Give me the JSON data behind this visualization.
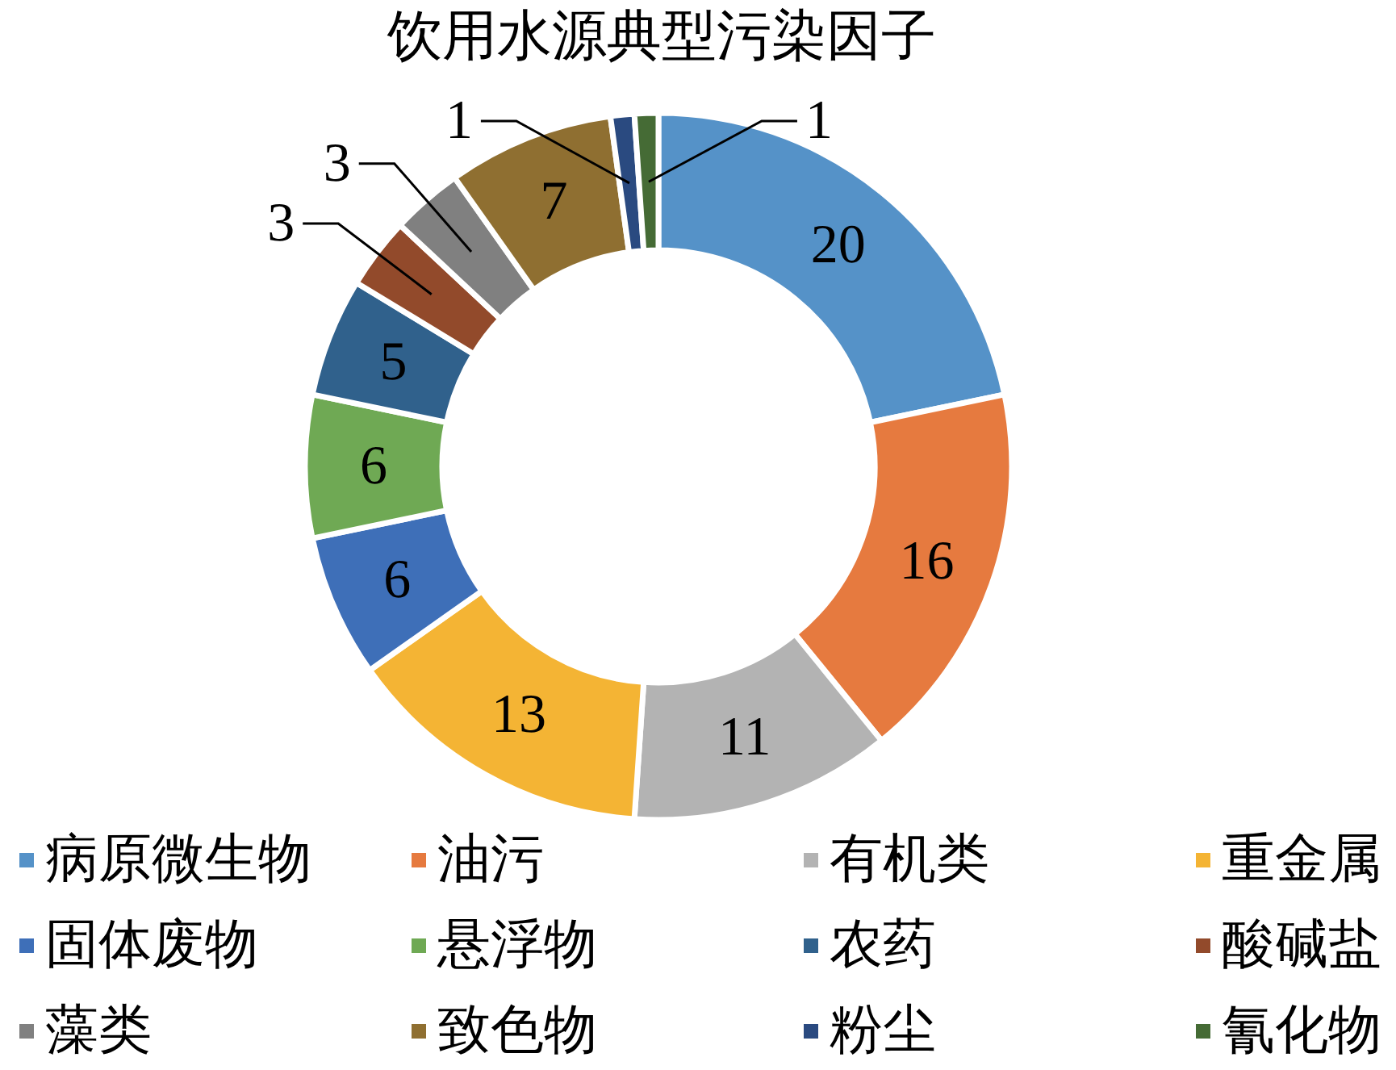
{
  "chart_data": {
    "type": "donut",
    "title": "饮用水源典型污染因子",
    "categories": [
      "病原微生物",
      "油污",
      "有机类",
      "重金属",
      "固体废物",
      "悬浮物",
      "农药",
      "酸碱盐",
      "藻类",
      "致色物",
      "粉尘",
      "氰化物"
    ],
    "values": [
      20,
      16,
      11,
      13,
      6,
      6,
      5,
      3,
      3,
      7,
      1,
      1
    ],
    "colors": [
      "#5592c8",
      "#e67a3f",
      "#b3b3b3",
      "#f4b434",
      "#3e6fb8",
      "#6fa954",
      "#30618c",
      "#924a2b",
      "#808080",
      "#8f6f31",
      "#2a4a80",
      "#456b35"
    ],
    "data_labels": true,
    "legend": "bottom"
  }
}
